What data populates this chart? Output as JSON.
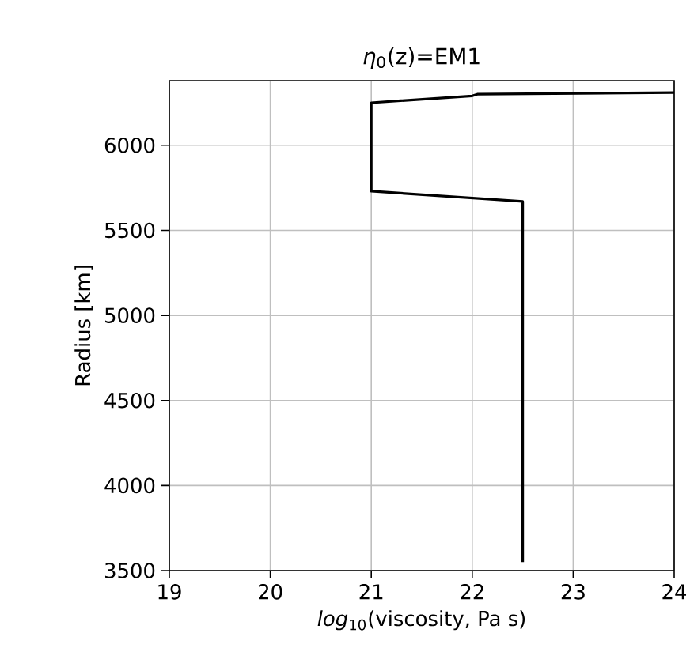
{
  "chart_data": {
    "type": "line",
    "title": "*η*$_{0}$(z)=EM1",
    "xlabel": "*log*$_{10}$(viscosity, Pa s)",
    "ylabel": "Radius [km]",
    "x": [
      22.5,
      22.5,
      21,
      21,
      22,
      22.05,
      24
    ],
    "series": [
      {
        "color": "#000000",
        "values": [
          3550,
          5670,
          5730,
          6250,
          6290,
          6300,
          6310
        ]
      }
    ],
    "xlim": [
      19,
      24
    ],
    "ylim": [
      3500,
      6380
    ],
    "xticks": [
      19,
      20,
      21,
      22,
      23,
      24
    ],
    "yticks": [
      3500,
      4000,
      4500,
      5000,
      5500,
      6000
    ],
    "grid": true,
    "marker": "none",
    "line_style": "solid"
  }
}
